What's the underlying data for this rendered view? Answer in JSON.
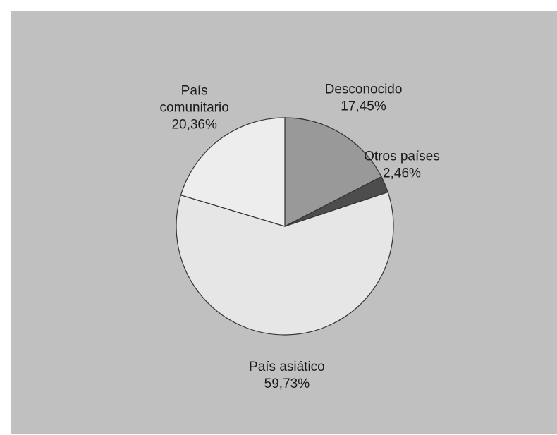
{
  "chart_data": {
    "type": "pie",
    "slices": [
      {
        "label": "Desconocido",
        "value": 17.45,
        "value_text": "17,45%",
        "color": "#999999"
      },
      {
        "label": "Otros países",
        "value": 2.46,
        "value_text": "2,46%",
        "color": "#4d4d4d"
      },
      {
        "label": "País asiático",
        "value": 59.73,
        "value_text": "59,73%",
        "color": "#e6e6e6"
      },
      {
        "label": "País comunitario",
        "value": 20.36,
        "value_text": "20,36%",
        "color": "#ededed"
      }
    ],
    "start_angle_deg": 0,
    "direction": "clockwise",
    "background_color": "#c0c0c0",
    "edge_color": "#333333",
    "legend": "none"
  }
}
